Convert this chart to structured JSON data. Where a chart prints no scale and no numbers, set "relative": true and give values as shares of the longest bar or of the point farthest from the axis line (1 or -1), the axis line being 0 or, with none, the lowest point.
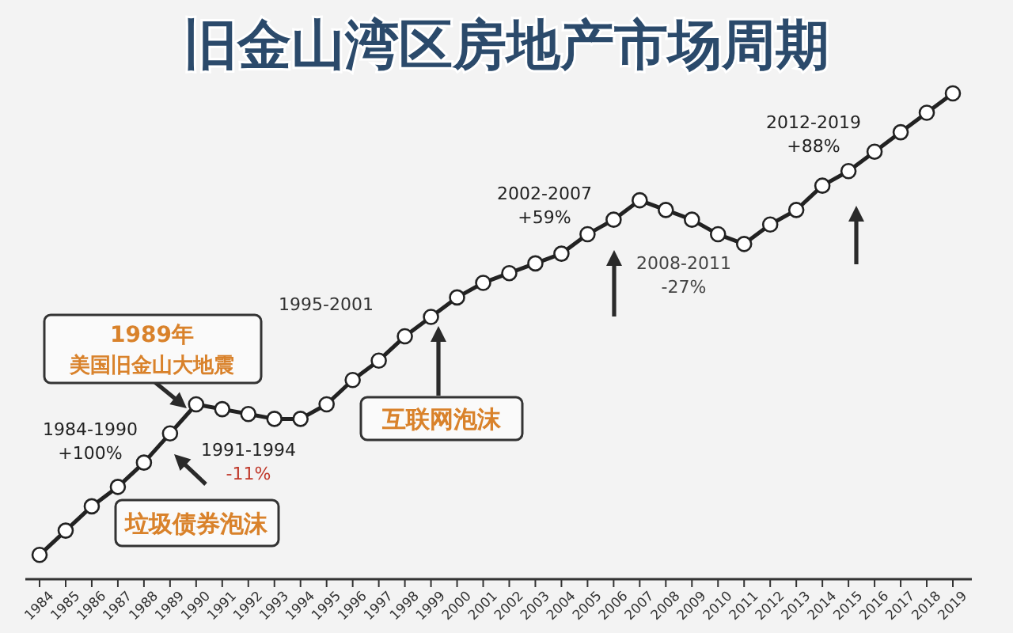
{
  "chart_data": {
    "type": "line",
    "title": "旧金山湾区房地产市场周期",
    "relative": true,
    "marker": "circle",
    "line_style": "solid",
    "grid": false,
    "categories": [
      "1984",
      "1985",
      "1986",
      "1987",
      "1988",
      "1989",
      "1990",
      "1991",
      "1992",
      "1993",
      "1994",
      "1995",
      "1996",
      "1997",
      "1998",
      "1999",
      "2000",
      "2001",
      "2002",
      "2003",
      "2004",
      "2005",
      "2006",
      "2007",
      "2008",
      "2009",
      "2010",
      "2011",
      "2012",
      "2013",
      "2014",
      "2015",
      "2016",
      "2017",
      "2018",
      "2019"
    ],
    "series": [
      {
        "color": "#222222",
        "values": [
          0.05,
          0.1,
          0.15,
          0.19,
          0.24,
          0.3,
          0.36,
          0.35,
          0.34,
          0.33,
          0.33,
          0.36,
          0.41,
          0.45,
          0.5,
          0.54,
          0.58,
          0.61,
          0.63,
          0.65,
          0.67,
          0.71,
          0.74,
          0.78,
          0.76,
          0.74,
          0.71,
          0.69,
          0.73,
          0.76,
          0.81,
          0.84,
          0.88,
          0.92,
          0.96,
          1
        ]
      }
    ],
    "annotations": [
      "1984-1990\n+100%",
      "1991-1994\n-11%",
      "垃圾债券泡沫",
      "1989年",
      "美国旧金山大地震",
      "1995-2001",
      "互联网泡沫",
      "2002-2007\n+59%",
      "2008-2011\n-27%",
      "2012-2019\n+88%"
    ]
  }
}
